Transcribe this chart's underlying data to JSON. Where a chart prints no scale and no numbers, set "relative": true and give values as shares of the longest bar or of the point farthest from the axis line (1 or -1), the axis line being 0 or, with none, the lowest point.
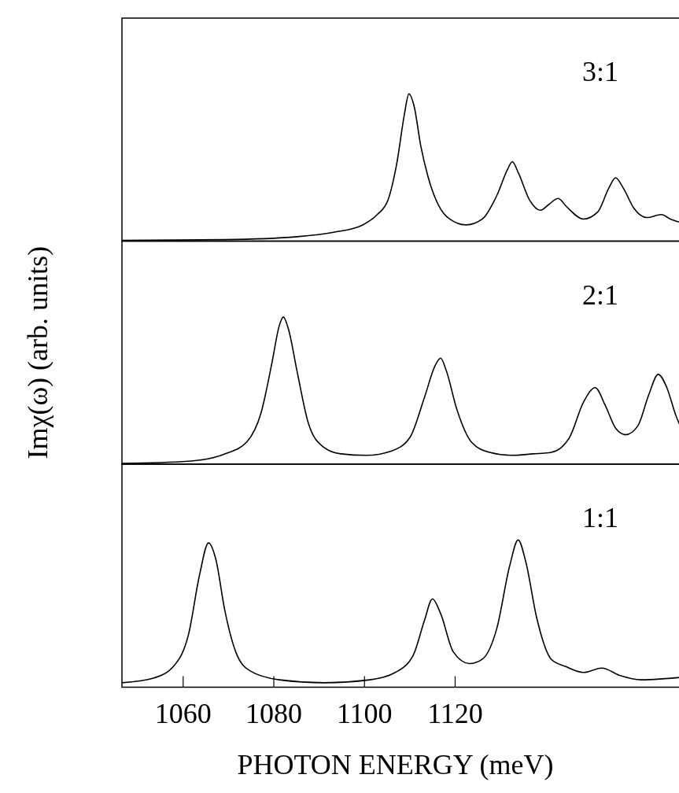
{
  "chart_data": [
    {
      "type": "line",
      "relative": true,
      "xlim": [
        1046.5,
        1170.6
      ],
      "annotations": [
        "3:1"
      ],
      "color": "#000000",
      "x": [
        1046.5,
        1069.2,
        1085.2,
        1093.2,
        1099.6,
        1102.8,
        1105.2,
        1107.2,
        1108.8,
        1109.8,
        1111.0,
        1112.4,
        1114.0,
        1116.4,
        1118.8,
        1122.4,
        1126.0,
        1129.2,
        1131.6,
        1132.6,
        1134.0,
        1136.4,
        1138.8,
        1140.7,
        1142.7,
        1144.7,
        1148.3,
        1151.5,
        1153.9,
        1155.4,
        1157.1,
        1159.5,
        1162.3,
        1165.5,
        1167.5,
        1170.6
      ],
      "values": [
        0.005,
        0.01,
        0.03,
        0.06,
        0.11,
        0.18,
        0.28,
        0.54,
        0.86,
        1.0,
        0.91,
        0.65,
        0.44,
        0.24,
        0.15,
        0.11,
        0.15,
        0.31,
        0.49,
        0.54,
        0.46,
        0.28,
        0.21,
        0.25,
        0.29,
        0.23,
        0.15,
        0.2,
        0.36,
        0.43,
        0.36,
        0.22,
        0.16,
        0.18,
        0.15,
        0.12
      ]
    },
    {
      "type": "line",
      "relative": true,
      "xlim": [
        1046.5,
        1170.6
      ],
      "ylabel": "Imχ(ω) (arb. units)",
      "annotations": [
        "2:1"
      ],
      "color": "#000000",
      "x": [
        1046.5,
        1061.2,
        1069.2,
        1074.0,
        1077.2,
        1079.6,
        1081.2,
        1082.1,
        1083.2,
        1085.2,
        1087.6,
        1090.8,
        1094.8,
        1100.4,
        1106.0,
        1110.0,
        1113.2,
        1115.6,
        1116.8,
        1118.0,
        1120.4,
        1123.6,
        1127.6,
        1132.4,
        1137.2,
        1141.2,
        1145.2,
        1148.3,
        1150.9,
        1153.1,
        1155.5,
        1157.6,
        1160.3,
        1162.7,
        1164.8,
        1166.7,
        1168.7,
        1170.6
      ],
      "values": [
        0.005,
        0.02,
        0.07,
        0.15,
        0.35,
        0.69,
        0.94,
        1.0,
        0.92,
        0.62,
        0.28,
        0.12,
        0.07,
        0.06,
        0.09,
        0.18,
        0.45,
        0.67,
        0.72,
        0.64,
        0.37,
        0.15,
        0.08,
        0.06,
        0.07,
        0.08,
        0.18,
        0.42,
        0.52,
        0.4,
        0.24,
        0.2,
        0.26,
        0.47,
        0.61,
        0.52,
        0.33,
        0.2
      ]
    },
    {
      "type": "line",
      "relative": true,
      "tick_labels": "x",
      "xlim": [
        1046.5,
        1170.6
      ],
      "xticks": [
        1060,
        1080,
        1100,
        1120
      ],
      "xlabel": "PHOTON ENERGY (meV)",
      "annotations": [
        "1:1"
      ],
      "color": "#000000",
      "x": [
        1046.5,
        1053.3,
        1058.1,
        1061.2,
        1063.6,
        1065.6,
        1067.2,
        1069.2,
        1071.6,
        1074.8,
        1081.2,
        1091.2,
        1101.2,
        1106.8,
        1110.8,
        1113.2,
        1115.0,
        1116.8,
        1119.6,
        1123.2,
        1126.0,
        1129.2,
        1132.0,
        1133.9,
        1135.6,
        1138.0,
        1141.2,
        1144.4,
        1148.3,
        1152.4,
        1156.3,
        1161.1,
        1170.6
      ],
      "values": [
        0.03,
        0.06,
        0.15,
        0.36,
        0.76,
        0.98,
        0.87,
        0.52,
        0.24,
        0.11,
        0.05,
        0.03,
        0.05,
        0.1,
        0.22,
        0.45,
        0.6,
        0.5,
        0.24,
        0.16,
        0.19,
        0.4,
        0.82,
        1.0,
        0.85,
        0.47,
        0.19,
        0.14,
        0.1,
        0.13,
        0.08,
        0.05,
        0.07
      ]
    }
  ]
}
